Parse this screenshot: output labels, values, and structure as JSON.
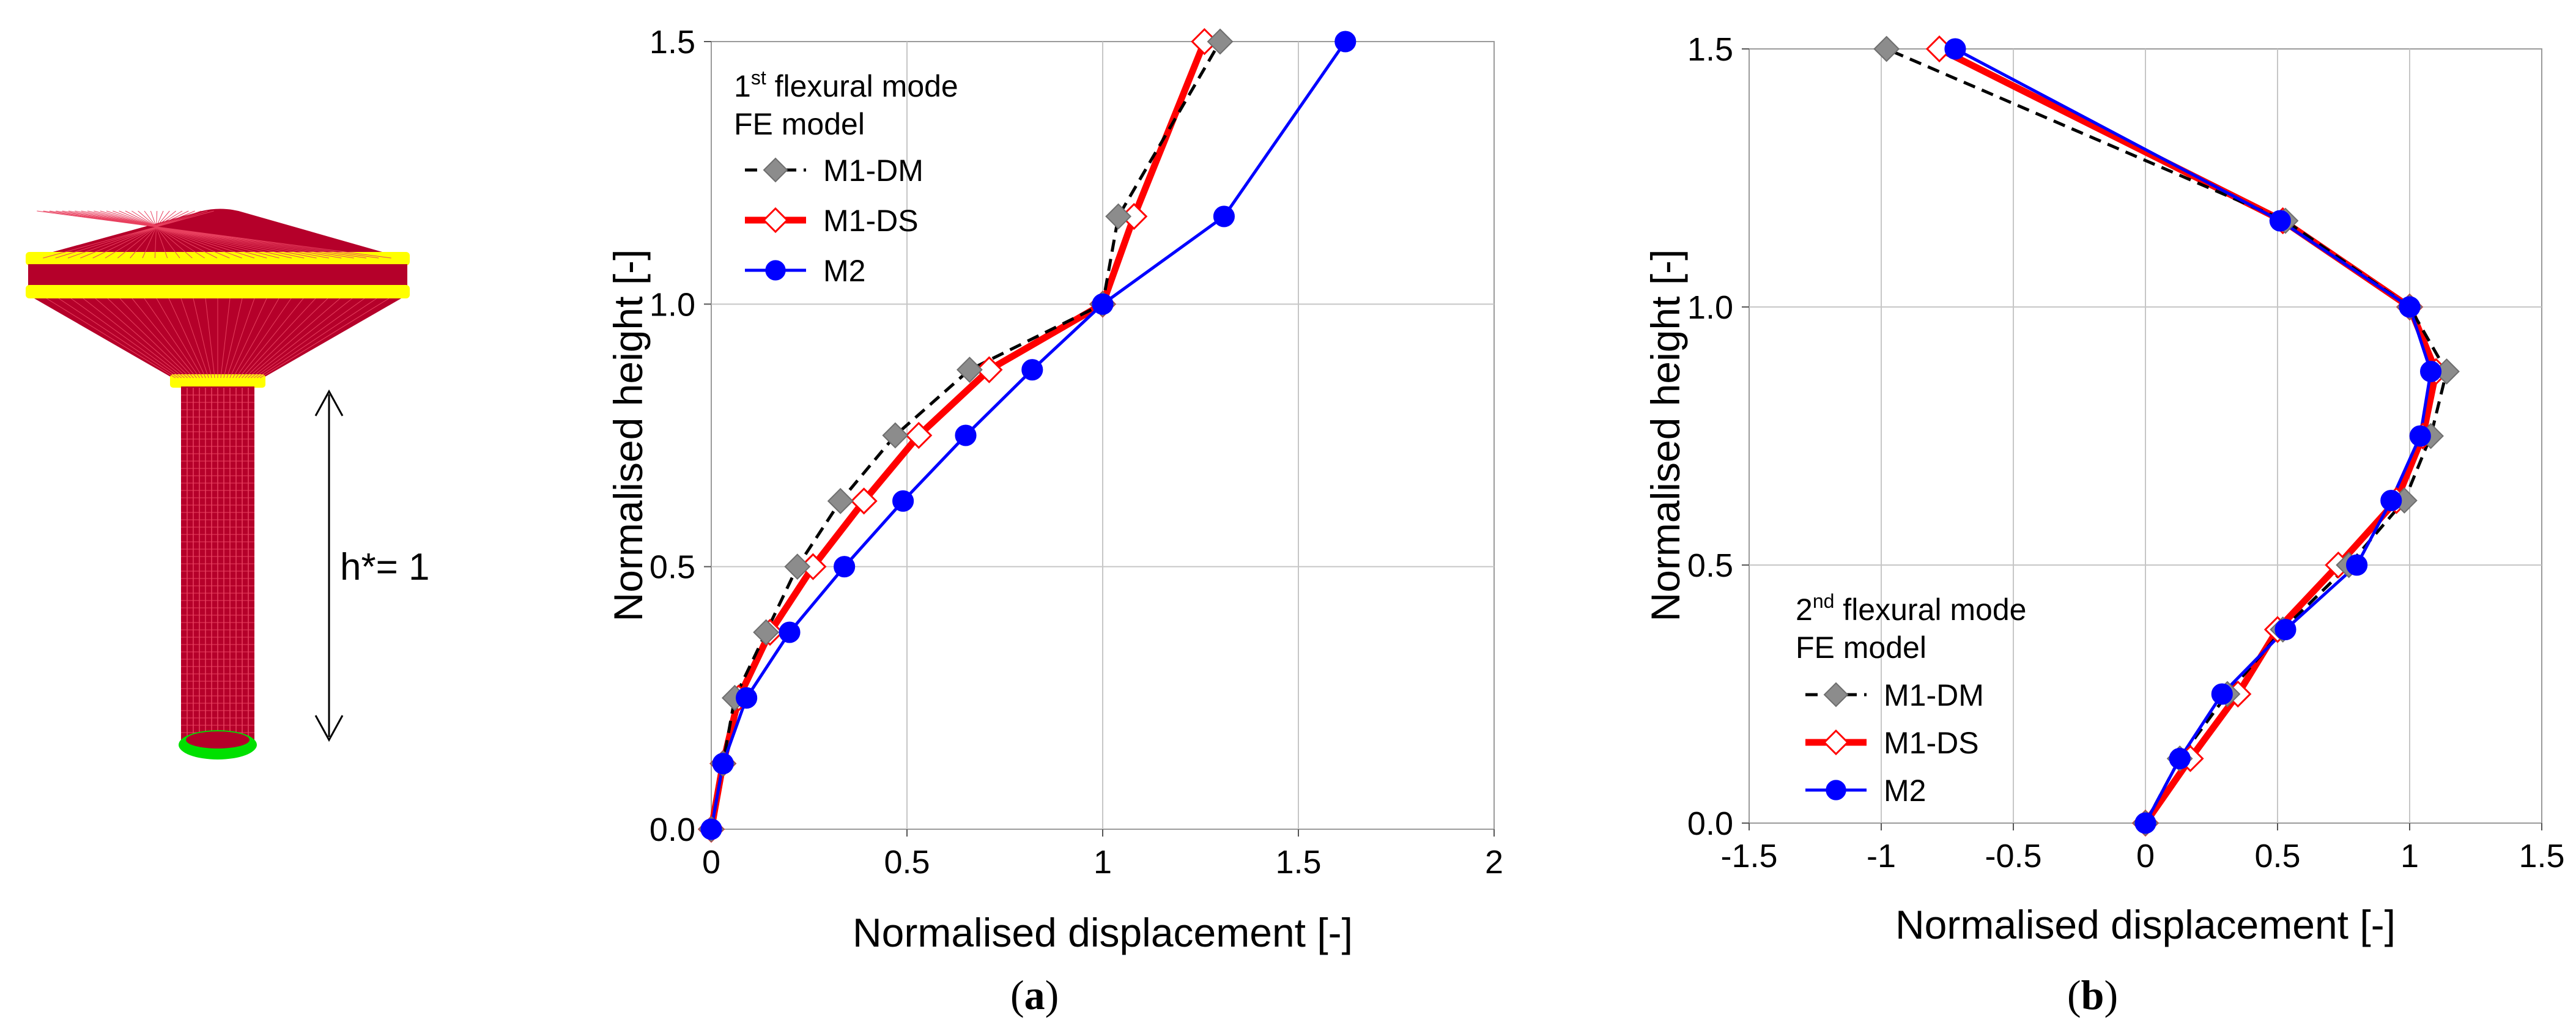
{
  "colors": {
    "tower_body": "#b5002a",
    "tower_mesh": "#e8405f",
    "ring_yellow": "#ffff00",
    "base_green": "#00e000",
    "m1dm_line": "#000000",
    "m1dm_marker": "#8c8c8c",
    "m1ds_line": "#ff0000",
    "m2_line": "#0000ff"
  },
  "model": {
    "height_label": "h*= 1"
  },
  "chart_data": [
    {
      "type": "line",
      "panel_label": "(a)",
      "panel_letter": "a",
      "legend_title_main": "1",
      "legend_title_sup": "st",
      "legend_title_rest": " flexural mode",
      "legend_subtitle": "FE model",
      "legend_position": "top-left",
      "xlabel": "Normalised displacement  [-]",
      "ylabel": "Normalised height  [-]",
      "xlim": [
        0,
        2
      ],
      "ylim": [
        0,
        1.5
      ],
      "xticks": [
        0,
        0.5,
        1,
        1.5,
        2
      ],
      "xtick_labels": [
        "0",
        "0.5",
        "1",
        "1.5",
        "2"
      ],
      "yticks": [
        0,
        0.5,
        1.0,
        1.5
      ],
      "ytick_labels": [
        "0.0",
        "0.5",
        "1.0",
        "1.5"
      ],
      "series": [
        {
          "name": "M1-DM",
          "style": "dashed",
          "marker": "diamond-gray",
          "x": [
            0,
            0.03,
            0.06,
            0.14,
            0.22,
            0.33,
            0.47,
            0.66,
            1.0,
            1.04,
            1.3
          ],
          "y": [
            0,
            0.125,
            0.25,
            0.375,
            0.5,
            0.625,
            0.75,
            0.875,
            1.0,
            1.167,
            1.5
          ]
        },
        {
          "name": "M1-DS",
          "style": "solid-thick",
          "marker": "diamond-white",
          "x": [
            0,
            0.03,
            0.07,
            0.15,
            0.26,
            0.39,
            0.53,
            0.71,
            1.0,
            1.08,
            1.26
          ],
          "y": [
            0,
            0.125,
            0.25,
            0.375,
            0.5,
            0.625,
            0.75,
            0.875,
            1.0,
            1.167,
            1.5
          ]
        },
        {
          "name": "M2",
          "style": "solid",
          "marker": "circle-blue",
          "x": [
            0,
            0.03,
            0.09,
            0.2,
            0.34,
            0.49,
            0.65,
            0.82,
            1.0,
            1.31,
            1.62
          ],
          "y": [
            0,
            0.125,
            0.25,
            0.375,
            0.5,
            0.625,
            0.75,
            0.875,
            1.0,
            1.167,
            1.5
          ]
        }
      ]
    },
    {
      "type": "line",
      "panel_label": "(b)",
      "panel_letter": "b",
      "legend_title_main": "2",
      "legend_title_sup": "nd",
      "legend_title_rest": " flexural mode",
      "legend_subtitle": "FE model",
      "legend_position": "bottom-left",
      "xlabel": "Normalised displacement  [-]",
      "ylabel": "Normalised height  [-]",
      "xlim": [
        -1.5,
        1.5
      ],
      "ylim": [
        0,
        1.5
      ],
      "xticks": [
        -1.5,
        -1,
        -0.5,
        0,
        0.5,
        1,
        1.5
      ],
      "xtick_labels": [
        "-1.5",
        "-1",
        "-0.5",
        "0",
        "0.5",
        "1",
        "1.5"
      ],
      "yticks": [
        0,
        0.5,
        1.0,
        1.5
      ],
      "ytick_labels": [
        "0.0",
        "0.5",
        "1.0",
        "1.5"
      ],
      "series": [
        {
          "name": "M1-DM",
          "style": "dashed",
          "marker": "diamond-gray",
          "x": [
            0,
            0.13,
            0.31,
            0.52,
            0.77,
            0.98,
            1.08,
            1.14,
            1.0,
            0.53,
            -0.98
          ],
          "y": [
            0,
            0.125,
            0.25,
            0.375,
            0.5,
            0.625,
            0.75,
            0.875,
            1.0,
            1.167,
            1.5
          ]
        },
        {
          "name": "M1-DS",
          "style": "solid-thick",
          "marker": "diamond-white",
          "x": [
            0,
            0.17,
            0.35,
            0.5,
            0.73,
            0.95,
            1.05,
            1.1,
            1.0,
            0.52,
            -0.78
          ],
          "y": [
            0,
            0.125,
            0.25,
            0.375,
            0.5,
            0.625,
            0.75,
            0.875,
            1.0,
            1.167,
            1.5
          ]
        },
        {
          "name": "M2",
          "style": "solid",
          "marker": "circle-blue",
          "x": [
            0,
            0.13,
            0.29,
            0.53,
            0.8,
            0.93,
            1.04,
            1.08,
            1.0,
            0.51,
            -0.72
          ],
          "y": [
            0,
            0.125,
            0.25,
            0.375,
            0.5,
            0.625,
            0.75,
            0.875,
            1.0,
            1.167,
            1.5
          ]
        }
      ]
    }
  ]
}
